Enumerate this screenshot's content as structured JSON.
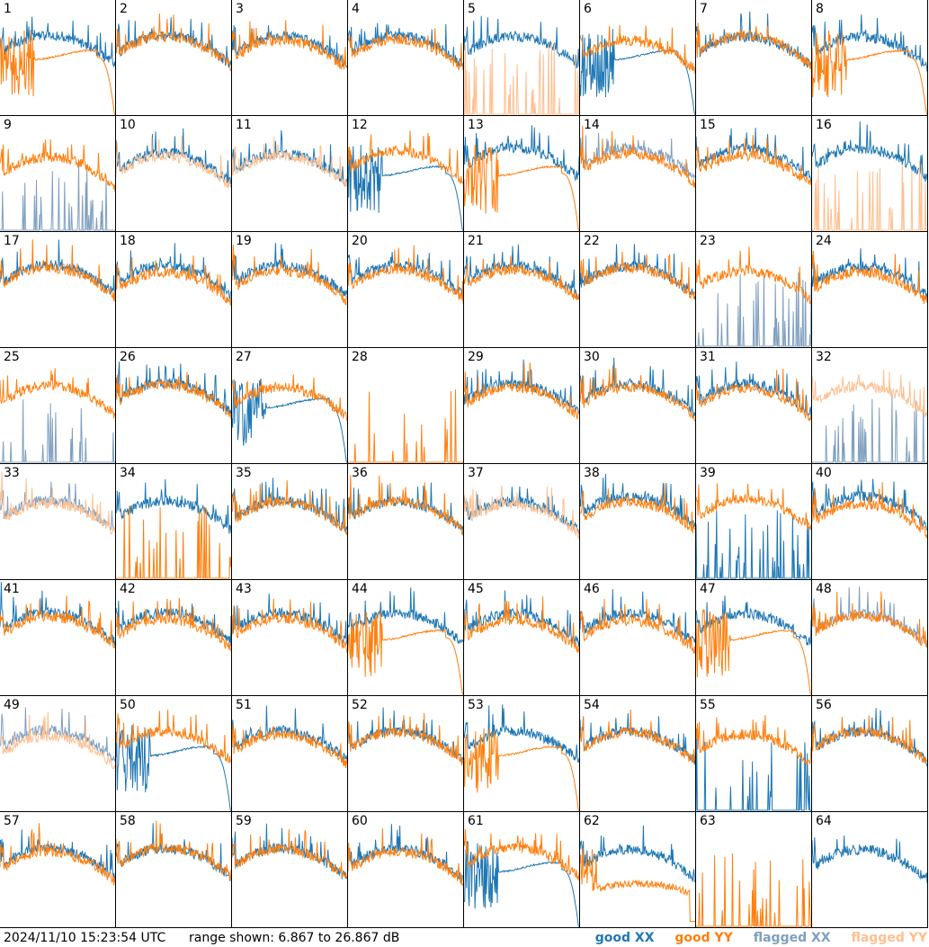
{
  "footer": {
    "timestamp": "2024/11/10 15:23:54 UTC",
    "range_text": "range shown: 6.867 to 26.867 dB"
  },
  "legend": [
    {
      "label": "good XX",
      "color": "#1f77b4"
    },
    {
      "label": "good YY",
      "color": "#ff7f0e"
    },
    {
      "label": "flagged XX",
      "color": "#7f9fbf"
    },
    {
      "label": "flagged YY",
      "color": "#ffbf8f"
    }
  ],
  "chart_data": {
    "type": "line",
    "layout": "8x8 small multiples",
    "y_range_db": [
      6.867,
      26.867
    ],
    "series_keys": [
      "good XX",
      "good YY",
      "flagged XX",
      "flagged YY"
    ],
    "panels": [
      {
        "id": "1",
        "xx": "good-normal",
        "yy": "good-dropout"
      },
      {
        "id": "2",
        "xx": "good-normal",
        "yy": "good-normal"
      },
      {
        "id": "3",
        "xx": "good-normal",
        "yy": "good-normal"
      },
      {
        "id": "4",
        "xx": "good-normal",
        "yy": "good-normal"
      },
      {
        "id": "5",
        "xx": "good-normal",
        "yy": "flagged-spikes"
      },
      {
        "id": "6",
        "xx": "good-dropout",
        "yy": "good-normal"
      },
      {
        "id": "7",
        "xx": "good-normal",
        "yy": "good-normal"
      },
      {
        "id": "8",
        "xx": "good-normal",
        "yy": "good-dropout"
      },
      {
        "id": "9",
        "xx": "flagged-spikes",
        "yy": "good-normal"
      },
      {
        "id": "10",
        "xx": "good-normal",
        "yy": "flagged-normal"
      },
      {
        "id": "11",
        "xx": "good-normal",
        "yy": "flagged-normal"
      },
      {
        "id": "12",
        "xx": "good-dropout",
        "yy": "good-normal"
      },
      {
        "id": "13",
        "xx": "good-normal",
        "yy": "good-dropout"
      },
      {
        "id": "14",
        "xx": "flagged-normal",
        "yy": "good-normal"
      },
      {
        "id": "15",
        "xx": "good-normal",
        "yy": "good-normal"
      },
      {
        "id": "16",
        "xx": "good-normal",
        "yy": "flagged-spikes"
      },
      {
        "id": "17",
        "xx": "good-normal",
        "yy": "good-normal"
      },
      {
        "id": "18",
        "xx": "good-normal",
        "yy": "good-normal"
      },
      {
        "id": "19",
        "xx": "good-normal",
        "yy": "good-normal"
      },
      {
        "id": "20",
        "xx": "good-normal",
        "yy": "good-normal"
      },
      {
        "id": "21",
        "xx": "good-normal",
        "yy": "good-normal"
      },
      {
        "id": "22",
        "xx": "good-normal",
        "yy": "good-normal"
      },
      {
        "id": "23",
        "xx": "flagged-spikes",
        "yy": "good-normal"
      },
      {
        "id": "24",
        "xx": "good-normal",
        "yy": "good-normal"
      },
      {
        "id": "25",
        "xx": "flagged-spikes",
        "yy": "good-normal"
      },
      {
        "id": "26",
        "xx": "good-normal",
        "yy": "good-normal"
      },
      {
        "id": "27",
        "xx": "good-dropout",
        "yy": "good-normal"
      },
      {
        "id": "28",
        "xx": "none",
        "yy": "good-spikes"
      },
      {
        "id": "29",
        "xx": "good-normal",
        "yy": "good-normal"
      },
      {
        "id": "30",
        "xx": "good-normal",
        "yy": "good-normal"
      },
      {
        "id": "31",
        "xx": "good-normal",
        "yy": "good-normal"
      },
      {
        "id": "32",
        "xx": "flagged-spikes",
        "yy": "flagged-normal"
      },
      {
        "id": "33",
        "xx": "flagged-normal",
        "yy": "flagged-normal"
      },
      {
        "id": "34",
        "xx": "good-normal",
        "yy": "good-spikes"
      },
      {
        "id": "35",
        "xx": "good-normal",
        "yy": "good-normal"
      },
      {
        "id": "36",
        "xx": "good-normal",
        "yy": "good-normal"
      },
      {
        "id": "37",
        "xx": "good-normal",
        "yy": "flagged-normal"
      },
      {
        "id": "38",
        "xx": "good-normal",
        "yy": "good-normal"
      },
      {
        "id": "39",
        "xx": "good-spikes",
        "yy": "good-normal"
      },
      {
        "id": "40",
        "xx": "good-normal",
        "yy": "good-normal"
      },
      {
        "id": "41",
        "xx": "good-normal",
        "yy": "good-normal"
      },
      {
        "id": "42",
        "xx": "good-normal",
        "yy": "good-normal"
      },
      {
        "id": "43",
        "xx": "good-normal",
        "yy": "good-normal"
      },
      {
        "id": "44",
        "xx": "good-normal",
        "yy": "good-dropout"
      },
      {
        "id": "45",
        "xx": "good-normal",
        "yy": "good-normal"
      },
      {
        "id": "46",
        "xx": "good-normal",
        "yy": "good-normal"
      },
      {
        "id": "47",
        "xx": "good-normal",
        "yy": "good-dropout"
      },
      {
        "id": "48",
        "xx": "flagged-normal",
        "yy": "good-normal"
      },
      {
        "id": "49",
        "xx": "flagged-normal",
        "yy": "flagged-normal"
      },
      {
        "id": "50",
        "xx": "good-dropout",
        "yy": "good-normal"
      },
      {
        "id": "51",
        "xx": "good-normal",
        "yy": "good-normal"
      },
      {
        "id": "52",
        "xx": "good-normal",
        "yy": "good-normal"
      },
      {
        "id": "53",
        "xx": "good-normal",
        "yy": "good-dropout"
      },
      {
        "id": "54",
        "xx": "good-normal",
        "yy": "good-normal"
      },
      {
        "id": "55",
        "xx": "good-spikes",
        "yy": "good-normal"
      },
      {
        "id": "56",
        "xx": "good-normal",
        "yy": "good-normal"
      },
      {
        "id": "57",
        "xx": "good-normal",
        "yy": "good-normal"
      },
      {
        "id": "58",
        "xx": "good-normal",
        "yy": "good-normal"
      },
      {
        "id": "59",
        "xx": "good-normal",
        "yy": "good-normal"
      },
      {
        "id": "60",
        "xx": "good-normal",
        "yy": "good-normal"
      },
      {
        "id": "61",
        "xx": "good-dropout",
        "yy": "good-normal"
      },
      {
        "id": "62",
        "xx": "good-normal",
        "yy": "good-low"
      },
      {
        "id": "63",
        "xx": "none",
        "yy": "good-spikes"
      },
      {
        "id": "64",
        "xx": "good-normal",
        "yy": "none"
      }
    ]
  }
}
